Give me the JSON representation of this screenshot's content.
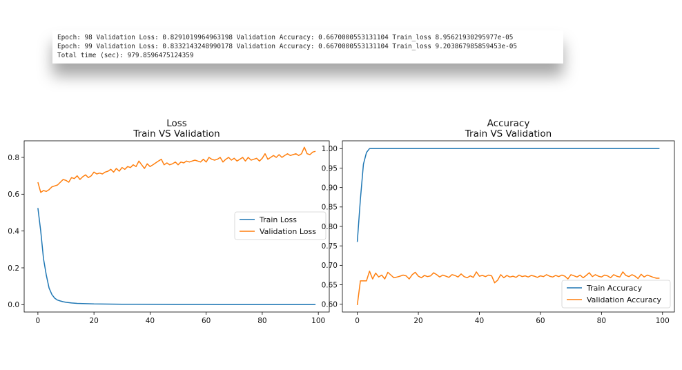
{
  "log": {
    "lines": [
      "Epoch: 98 Validation Loss: 0.8291019964963198 Validation Accuracy: 0.6670000553131104 Train_loss 8.95621930295977e-05",
      "Epoch: 99 Validation Loss: 0.8332143248990178 Validation Accuracy: 0.6670000553131104 Train_loss 9.203867985859453e-05",
      "Total time (sec): 979.8596475124359"
    ]
  },
  "colors": {
    "train": "#1f77b4",
    "validation": "#ff7f0e"
  },
  "chart_data": [
    {
      "type": "line",
      "title": "Loss",
      "subtitle": "Train VS Validation",
      "xlim": [
        0,
        99
      ],
      "ylim": [
        -0.04,
        0.89
      ],
      "xticks": [
        0,
        20,
        40,
        60,
        80,
        100
      ],
      "yticks": [
        0.0,
        0.2,
        0.4,
        0.6,
        0.8
      ],
      "ytick_labels": [
        "0.0",
        "0.2",
        "0.4",
        "0.6",
        "0.8"
      ],
      "legend": "center-right",
      "series": [
        {
          "name": "Train Loss",
          "x": [
            0,
            1,
            2,
            3,
            4,
            5,
            6,
            7,
            8,
            9,
            10,
            12,
            14,
            16,
            18,
            20,
            25,
            30,
            35,
            40,
            45,
            50,
            55,
            60,
            65,
            70,
            75,
            80,
            85,
            90,
            95,
            99
          ],
          "y": [
            0.525,
            0.4,
            0.25,
            0.16,
            0.09,
            0.055,
            0.035,
            0.025,
            0.02,
            0.016,
            0.013,
            0.009,
            0.007,
            0.006,
            0.005,
            0.004,
            0.003,
            0.0025,
            0.002,
            0.0015,
            0.0012,
            0.001,
            0.0008,
            0.0007,
            0.0005,
            0.0004,
            0.0003,
            0.0002,
            0.0002,
            0.0001,
            0.0001,
            0.0001
          ]
        },
        {
          "name": "Validation Loss",
          "x": [
            0,
            1,
            2,
            3,
            4,
            5,
            6,
            7,
            8,
            9,
            10,
            11,
            12,
            13,
            14,
            15,
            16,
            17,
            18,
            19,
            20,
            21,
            22,
            23,
            24,
            25,
            26,
            27,
            28,
            29,
            30,
            31,
            32,
            33,
            34,
            35,
            36,
            37,
            38,
            39,
            40,
            41,
            42,
            43,
            44,
            45,
            46,
            47,
            48,
            49,
            50,
            51,
            52,
            53,
            54,
            55,
            56,
            57,
            58,
            59,
            60,
            61,
            62,
            63,
            64,
            65,
            66,
            67,
            68,
            69,
            70,
            71,
            72,
            73,
            74,
            75,
            76,
            77,
            78,
            79,
            80,
            81,
            82,
            83,
            84,
            85,
            86,
            87,
            88,
            89,
            90,
            91,
            92,
            93,
            94,
            95,
            96,
            97,
            98,
            99
          ],
          "y": [
            0.665,
            0.61,
            0.62,
            0.615,
            0.625,
            0.64,
            0.645,
            0.65,
            0.665,
            0.68,
            0.675,
            0.665,
            0.69,
            0.685,
            0.7,
            0.68,
            0.695,
            0.705,
            0.69,
            0.7,
            0.72,
            0.71,
            0.715,
            0.71,
            0.72,
            0.725,
            0.735,
            0.72,
            0.74,
            0.725,
            0.745,
            0.735,
            0.75,
            0.745,
            0.76,
            0.75,
            0.78,
            0.76,
            0.74,
            0.765,
            0.75,
            0.76,
            0.77,
            0.78,
            0.79,
            0.76,
            0.77,
            0.76,
            0.765,
            0.775,
            0.76,
            0.775,
            0.77,
            0.78,
            0.775,
            0.78,
            0.785,
            0.78,
            0.775,
            0.79,
            0.775,
            0.8,
            0.79,
            0.785,
            0.79,
            0.8,
            0.775,
            0.79,
            0.8,
            0.785,
            0.795,
            0.78,
            0.79,
            0.8,
            0.78,
            0.8,
            0.785,
            0.79,
            0.795,
            0.78,
            0.795,
            0.82,
            0.79,
            0.8,
            0.81,
            0.8,
            0.815,
            0.8,
            0.81,
            0.82,
            0.81,
            0.815,
            0.82,
            0.81,
            0.82,
            0.855,
            0.82,
            0.815,
            0.829,
            0.833
          ]
        }
      ]
    },
    {
      "type": "line",
      "title": "Accuracy",
      "subtitle": "Train VS Validation",
      "xlim": [
        0,
        99
      ],
      "ylim": [
        0.58,
        1.02
      ],
      "xticks": [
        0,
        20,
        40,
        60,
        80,
        100
      ],
      "yticks": [
        0.6,
        0.65,
        0.7,
        0.75,
        0.8,
        0.85,
        0.9,
        0.95,
        1.0
      ],
      "ytick_labels": [
        "0.60",
        "0.65",
        "0.70",
        "0.75",
        "0.80",
        "0.85",
        "0.90",
        "0.95",
        "1.00"
      ],
      "legend": "lower-right",
      "series": [
        {
          "name": "Train Accuracy",
          "x": [
            0,
            1,
            2,
            3,
            4,
            5,
            10,
            20,
            30,
            40,
            50,
            60,
            70,
            80,
            90,
            99
          ],
          "y": [
            0.76,
            0.87,
            0.96,
            0.99,
            1.0,
            1.0,
            1.0,
            1.0,
            1.0,
            1.0,
            1.0,
            1.0,
            1.0,
            1.0,
            1.0,
            1.0
          ]
        },
        {
          "name": "Validation Accuracy",
          "x": [
            0,
            1,
            2,
            3,
            4,
            5,
            6,
            7,
            8,
            9,
            10,
            11,
            12,
            13,
            14,
            15,
            16,
            17,
            18,
            19,
            20,
            21,
            22,
            23,
            24,
            25,
            26,
            27,
            28,
            29,
            30,
            31,
            32,
            33,
            34,
            35,
            36,
            37,
            38,
            39,
            40,
            41,
            42,
            43,
            44,
            45,
            46,
            47,
            48,
            49,
            50,
            51,
            52,
            53,
            54,
            55,
            56,
            57,
            58,
            59,
            60,
            61,
            62,
            63,
            64,
            65,
            66,
            67,
            68,
            69,
            70,
            71,
            72,
            73,
            74,
            75,
            76,
            77,
            78,
            79,
            80,
            81,
            82,
            83,
            84,
            85,
            86,
            87,
            88,
            89,
            90,
            91,
            92,
            93,
            94,
            95,
            96,
            97,
            98,
            99
          ],
          "y": [
            0.598,
            0.66,
            0.66,
            0.66,
            0.685,
            0.665,
            0.68,
            0.67,
            0.675,
            0.665,
            0.682,
            0.675,
            0.668,
            0.67,
            0.672,
            0.675,
            0.673,
            0.665,
            0.676,
            0.682,
            0.672,
            0.668,
            0.674,
            0.671,
            0.673,
            0.681,
            0.676,
            0.67,
            0.675,
            0.672,
            0.669,
            0.676,
            0.674,
            0.67,
            0.678,
            0.671,
            0.668,
            0.673,
            0.669,
            0.683,
            0.672,
            0.674,
            0.671,
            0.675,
            0.673,
            0.655,
            0.662,
            0.676,
            0.668,
            0.674,
            0.67,
            0.672,
            0.669,
            0.675,
            0.671,
            0.673,
            0.67,
            0.674,
            0.672,
            0.669,
            0.673,
            0.671,
            0.676,
            0.672,
            0.67,
            0.674,
            0.671,
            0.675,
            0.672,
            0.665,
            0.676,
            0.673,
            0.67,
            0.675,
            0.668,
            0.674,
            0.681,
            0.671,
            0.676,
            0.672,
            0.67,
            0.675,
            0.673,
            0.668,
            0.676,
            0.672,
            0.67,
            0.683,
            0.674,
            0.671,
            0.676,
            0.672,
            0.666,
            0.677,
            0.67,
            0.675,
            0.672,
            0.669,
            0.667,
            0.667
          ]
        }
      ]
    }
  ]
}
